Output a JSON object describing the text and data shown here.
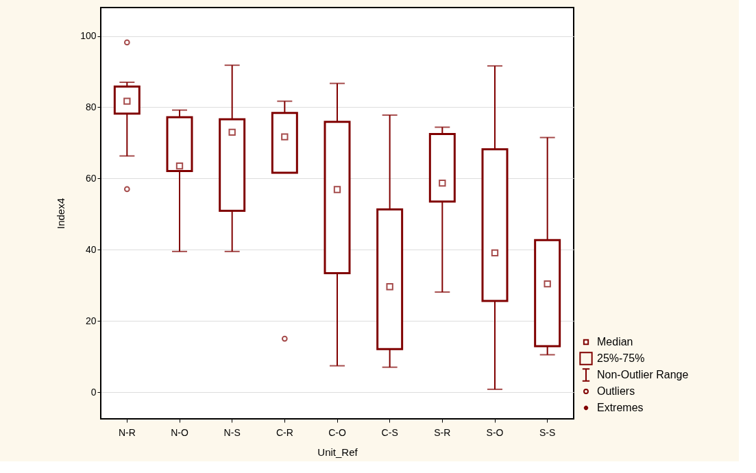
{
  "chart_data": {
    "type": "box",
    "xlabel": "Unit_Ref",
    "ylabel": "Index4",
    "categories": [
      "N-R",
      "N-O",
      "N-S",
      "C-R",
      "C-O",
      "C-S",
      "S-R",
      "S-O",
      "S-S"
    ],
    "color": "#800000",
    "boxes": [
      {
        "low": 66.3,
        "q1": 78.2,
        "median": 81.7,
        "q3": 85.8,
        "high": 87.0,
        "outliers": [
          98.2,
          57.0
        ]
      },
      {
        "low": 39.5,
        "q1": 62.1,
        "median": 63.5,
        "q3": 77.2,
        "high": 79.2
      },
      {
        "low": 39.5,
        "q1": 50.9,
        "median": 73.0,
        "q3": 76.6,
        "high": 91.8
      },
      {
        "low": 61.6,
        "q1": 61.6,
        "median": 71.7,
        "q3": 78.4,
        "high": 81.7,
        "outliers": [
          15.0
        ]
      },
      {
        "low": 7.4,
        "q1": 33.4,
        "median": 56.9,
        "q3": 75.9,
        "high": 86.7
      },
      {
        "low": 7.0,
        "q1": 12.1,
        "median": 29.6,
        "q3": 51.3,
        "high": 77.8
      },
      {
        "low": 28.1,
        "q1": 53.5,
        "median": 58.7,
        "q3": 72.5,
        "high": 74.4
      },
      {
        "low": 0.8,
        "q1": 25.6,
        "median": 39.1,
        "q3": 68.2,
        "high": 91.6
      },
      {
        "low": 10.5,
        "q1": 12.9,
        "median": 30.4,
        "q3": 42.7,
        "high": 71.5
      }
    ],
    "ylim": [
      -7.5,
      108
    ],
    "yticks": [
      0,
      20,
      40,
      60,
      80,
      100
    ],
    "grid": "y",
    "annotations": [
      "Median",
      "25%-75%",
      "Non-Outlier Range",
      "Outliers",
      "Extremes"
    ]
  }
}
